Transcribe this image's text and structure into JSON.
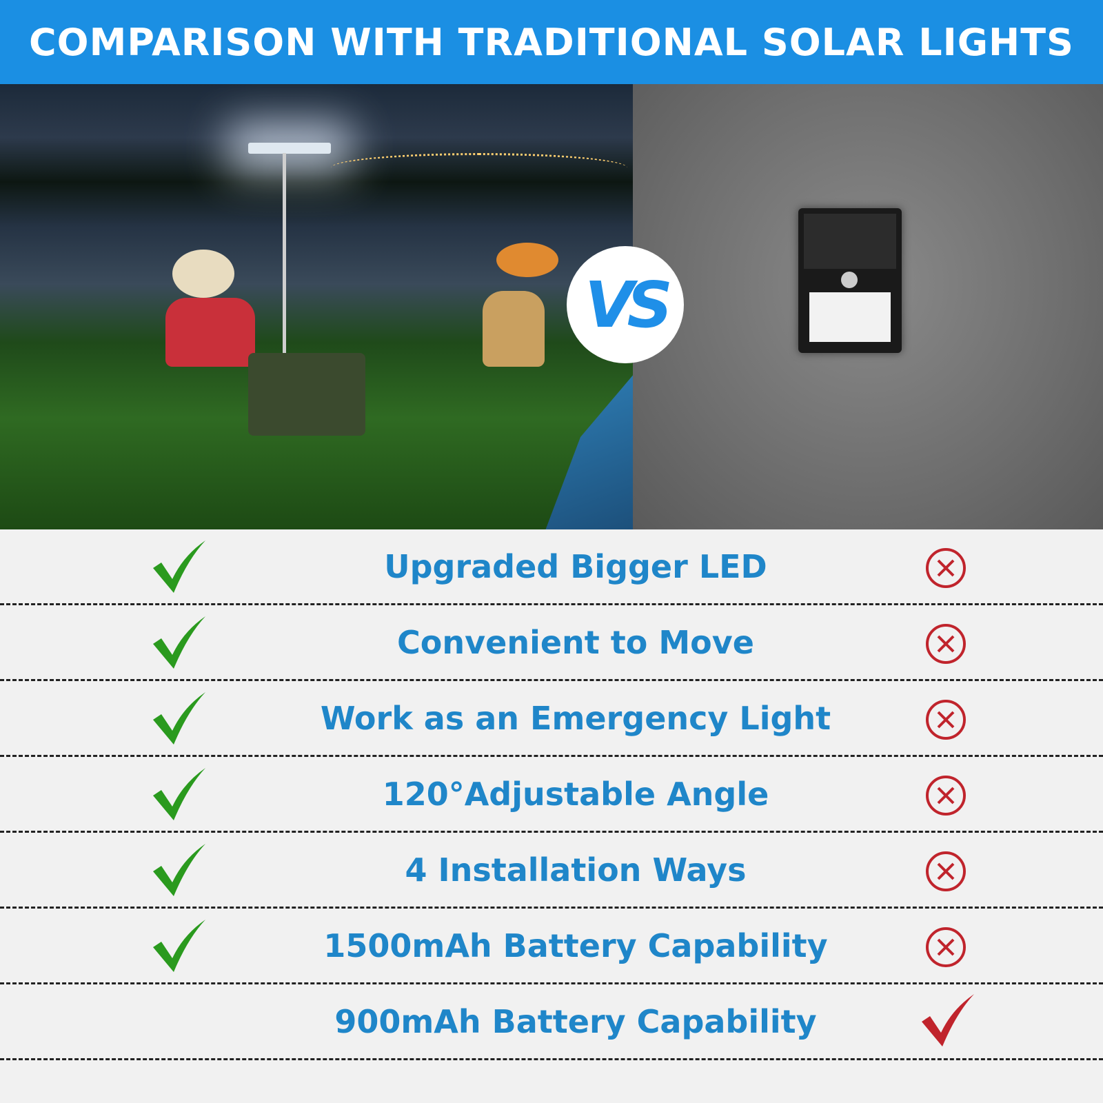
{
  "header": {
    "title": "COMPARISON WITH TRADITIONAL SOLAR LIGHTS"
  },
  "vs_badge": {
    "text": "VS",
    "color": "#1f8fe8"
  },
  "colors": {
    "header_bg": "#1b8fe3",
    "feature_text": "#1f86c9",
    "check_green": "#2a9a1e",
    "cross_red": "#c0242c"
  },
  "rows": [
    {
      "feature": "Upgraded Bigger LED",
      "ours": "check-icon",
      "traditional": "cross-circle-icon"
    },
    {
      "feature": "Convenient to Move",
      "ours": "check-icon",
      "traditional": "cross-circle-icon"
    },
    {
      "feature": "Work as an Emergency Light",
      "ours": "check-icon",
      "traditional": "cross-circle-icon"
    },
    {
      "feature": "120°Adjustable Angle",
      "ours": "check-icon",
      "traditional": "cross-circle-icon"
    },
    {
      "feature": "4 Installation Ways",
      "ours": "check-icon",
      "traditional": "cross-circle-icon"
    },
    {
      "feature": "1500mAh Battery Capability",
      "ours": "check-icon",
      "traditional": "cross-circle-icon"
    },
    {
      "feature": "900mAh Battery Capability",
      "ours": "none",
      "traditional": "red-check-icon"
    }
  ]
}
